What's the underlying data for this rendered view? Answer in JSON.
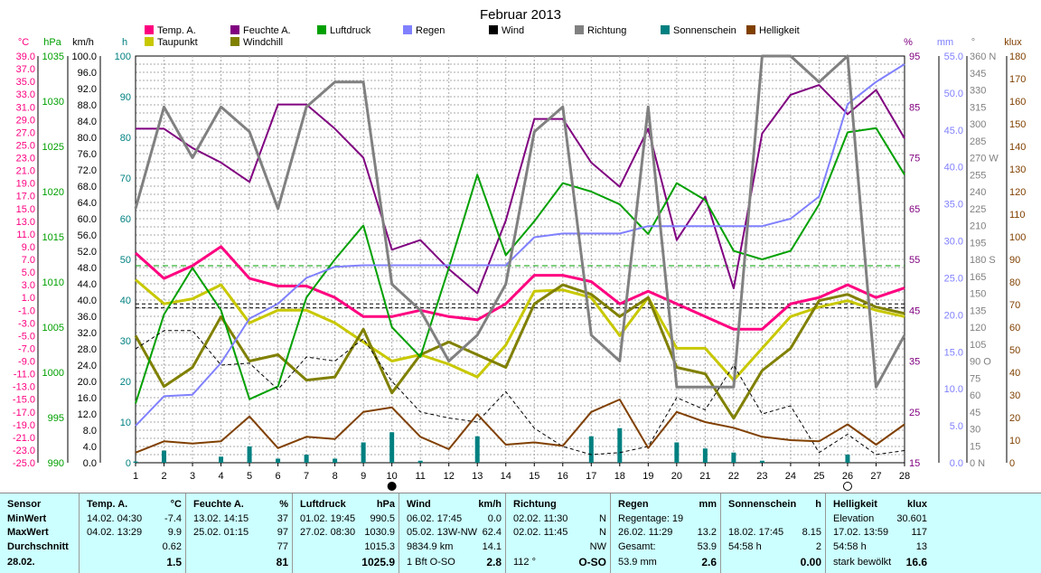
{
  "chart_data": {
    "type": "line",
    "title": "Februar 2013",
    "categories": [
      "1",
      "2",
      "3",
      "4",
      "5",
      "6",
      "7",
      "8",
      "9",
      "10",
      "11",
      "12",
      "13",
      "14",
      "15",
      "16",
      "17",
      "18",
      "19",
      "20",
      "21",
      "22",
      "23",
      "24",
      "25",
      "26",
      "27",
      "28"
    ],
    "legend": [
      {
        "name": "Temp. A.",
        "color": "#ff0080"
      },
      {
        "name": "Feuchte A.",
        "color": "#800080"
      },
      {
        "name": "Luftdruck",
        "color": "#00a000"
      },
      {
        "name": "Regen",
        "color": "#8080ff"
      },
      {
        "name": "Wind",
        "color": "#000000"
      },
      {
        "name": "Richtung",
        "color": "#808080"
      },
      {
        "name": "Sonnenschein",
        "color": "#008080"
      },
      {
        "name": "Helligkeit",
        "color": "#804000"
      },
      {
        "name": "Taupunkt",
        "color": "#c8c800"
      },
      {
        "name": "Windchill",
        "color": "#808000"
      }
    ],
    "axes": {
      "temp": {
        "label": "°C",
        "color": "#ff0080",
        "min": -25,
        "max": 39,
        "ticks": [
          "39.0",
          "37.0",
          "35.0",
          "33.0",
          "31.0",
          "29.0",
          "27.0",
          "25.0",
          "23.0",
          "21.0",
          "19.0",
          "17.0",
          "15.0",
          "13.0",
          "11.0",
          "9.0",
          "7.0",
          "5.0",
          "3.0",
          "1.0",
          "-1.0",
          "-3.0",
          "-5.0",
          "-7.0",
          "-9.0",
          "-11.0",
          "-13.0",
          "-15.0",
          "-17.0",
          "-19.0",
          "-21.0",
          "-23.0",
          "-25.0"
        ]
      },
      "hpa": {
        "label": "hPa",
        "color": "#00a000",
        "min": 990,
        "max": 1038,
        "ticks": [
          "1035",
          "1030",
          "1025",
          "1020",
          "1015",
          "1010",
          "1005",
          "1000",
          "995",
          "990"
        ]
      },
      "kmh": {
        "label": "km/h",
        "color": "#000000",
        "min": 0,
        "max": 100,
        "ticks": [
          "100.0",
          "96.0",
          "92.0",
          "88.0",
          "84.0",
          "80.0",
          "76.0",
          "72.0",
          "68.0",
          "64.0",
          "60.0",
          "56.0",
          "52.0",
          "48.0",
          "44.0",
          "40.0",
          "36.0",
          "32.0",
          "28.0",
          "24.0",
          "20.0",
          "16.0",
          "12.0",
          "8.0",
          "4.0",
          "0.0"
        ]
      },
      "h": {
        "label": "h",
        "color": "#008080",
        "min": 0,
        "max": 100,
        "ticks": [
          "100",
          "90",
          "80",
          "70",
          "60",
          "50",
          "40",
          "30",
          "20",
          "10",
          "0"
        ]
      },
      "pct": {
        "label": "%",
        "color": "#800080",
        "min": 15,
        "max": 99,
        "ticks": [
          "95",
          "85",
          "75",
          "65",
          "55",
          "45",
          "35",
          "25",
          "15"
        ]
      },
      "mm": {
        "label": "mm",
        "color": "#8080ff",
        "min": 0,
        "max": 55,
        "ticks": [
          "55.0",
          "50.0",
          "45.0",
          "40.0",
          "35.0",
          "30.0",
          "25.0",
          "20.0",
          "15.0",
          "10.0",
          "5.0",
          "0.0"
        ]
      },
      "deg": {
        "label": "°",
        "color": "#808080",
        "min": 0,
        "max": 360,
        "ticks": [
          "360 N",
          "345",
          "330",
          "315",
          "300",
          "285",
          "270 W",
          "255",
          "240",
          "225",
          "210",
          "195",
          "180 S",
          "165",
          "150",
          "135",
          "120",
          "105",
          "90 O",
          "75",
          "60",
          "45",
          "30",
          "15",
          "0 N"
        ]
      },
      "klux": {
        "label": "klux",
        "color": "#804000",
        "min": 0,
        "max": 180,
        "ticks": [
          "180",
          "170",
          "160",
          "150",
          "140",
          "130",
          "120",
          "110",
          "100",
          "90",
          "80",
          "70",
          "60",
          "50",
          "40",
          "30",
          "20",
          "10",
          "0"
        ]
      }
    },
    "series": [
      {
        "name": "Temp. A.",
        "axis": "temp",
        "color": "#ff0080",
        "width": 3,
        "values": [
          8.0,
          4.0,
          6.0,
          9.0,
          4.0,
          2.8,
          2.8,
          1.0,
          -2.0,
          -2.0,
          -1.0,
          -2.0,
          -2.5,
          0.0,
          4.5,
          4.5,
          3.5,
          0.0,
          2.0,
          0.0,
          -2.0,
          -4.0,
          -4.0,
          0.0,
          1.0,
          3.0,
          1.0,
          2.5
        ]
      },
      {
        "name": "Taupunkt",
        "axis": "temp",
        "color": "#c8c800",
        "width": 3,
        "values": [
          3.8,
          0.0,
          0.8,
          3.0,
          -3.0,
          -1.0,
          -1.0,
          -3.0,
          -6.0,
          -9.0,
          -8.0,
          -9.5,
          -11.5,
          -6.5,
          2.0,
          2.2,
          1.0,
          -5.0,
          1.0,
          -7.0,
          -7.0,
          -12.0,
          -7.0,
          -2.0,
          -0.5,
          0.5,
          -1.0,
          -2.0
        ]
      },
      {
        "name": "Windchill",
        "axis": "temp",
        "color": "#808000",
        "width": 3,
        "values": [
          -5.0,
          -13.0,
          -10.0,
          -2.0,
          -9.0,
          -8.0,
          -12.0,
          -11.5,
          -4.0,
          -14.0,
          -8.0,
          -6.0,
          -8.0,
          -10.0,
          0.0,
          3.0,
          1.5,
          -2.0,
          1.0,
          -10.0,
          -11.0,
          -18.0,
          -10.5,
          -7.0,
          0.5,
          1.5,
          -0.5,
          -1.5
        ]
      },
      {
        "name": "Feuchte A.",
        "axis": "pct",
        "color": "#800080",
        "width": 2,
        "values": [
          84,
          84,
          80,
          77,
          73,
          89,
          89,
          84,
          78,
          59,
          61,
          55,
          50,
          65,
          86,
          86,
          77,
          72,
          84,
          61,
          70,
          51,
          83,
          91,
          93,
          87,
          92,
          82
        ]
      },
      {
        "name": "Luftdruck",
        "axis": "hpa",
        "color": "#00a000",
        "width": 2,
        "values": [
          997.0,
          1007.5,
          1013.0,
          1008.0,
          997.5,
          999.0,
          1009.5,
          1014.0,
          1018.0,
          1006.0,
          1002.5,
          1013.0,
          1024.0,
          1014.5,
          1018.5,
          1023.0,
          1022.0,
          1020.5,
          1017.0,
          1023.0,
          1021.0,
          1015.0,
          1014.0,
          1015.0,
          1020.5,
          1029.0,
          1029.5,
          1024.0
        ]
      },
      {
        "name": "Regen",
        "axis": "mm",
        "color": "#8080ff",
        "width": 2,
        "values": [
          5.0,
          9.0,
          9.2,
          13.5,
          19.5,
          21.5,
          25.0,
          26.5,
          26.7,
          26.7,
          26.7,
          26.7,
          26.7,
          26.7,
          30.5,
          31.0,
          31.0,
          31.0,
          32.0,
          32.0,
          32.0,
          32.0,
          32.0,
          33.0,
          36.0,
          48.5,
          51.5,
          53.9
        ]
      },
      {
        "name": "Richtung",
        "axis": "deg",
        "color": "#808080",
        "width": 3,
        "values": [
          225,
          315,
          270,
          315,
          293,
          225,
          315,
          337,
          337,
          158,
          135,
          90,
          113,
          158,
          293,
          315,
          113,
          90,
          315,
          67,
          67,
          67,
          360,
          360,
          337,
          360,
          67,
          113
        ]
      },
      {
        "name": "Wind",
        "axis": "kmh",
        "color": "#000000",
        "width": 1,
        "dash": "4,3",
        "values": [
          28,
          32.5,
          32.5,
          24,
          24.5,
          18,
          26,
          25,
          30.5,
          20,
          12.5,
          11,
          10,
          17.5,
          8.5,
          4,
          2,
          2.5,
          4,
          16,
          13,
          24,
          12,
          14,
          2.5,
          7,
          2,
          3
        ]
      },
      {
        "name": "Helligkeit",
        "axis": "klux",
        "color": "#804000",
        "width": 2,
        "values": [
          4.5,
          9.5,
          8.5,
          9.5,
          20.5,
          6.5,
          11.5,
          10.5,
          22.5,
          24.5,
          11.5,
          6.0,
          21.5,
          8.0,
          9.0,
          7.5,
          22.5,
          28.0,
          6.5,
          22.5,
          18.0,
          15.5,
          11.5,
          10.0,
          9.5,
          17.0,
          8.0,
          17.0
        ]
      }
    ],
    "bars": {
      "name": "Sonnenschein",
      "axis": "h",
      "color": "#008080",
      "values": [
        0.3,
        3.0,
        0,
        1.5,
        4.0,
        1.0,
        2.0,
        1.0,
        5.0,
        7.5,
        0.5,
        0,
        6.5,
        0,
        0,
        0,
        6.5,
        8.5,
        0,
        5.0,
        3.5,
        2.5,
        0.5,
        0,
        0,
        2.0,
        0,
        0
      ]
    },
    "reference_lines": [
      {
        "axis": "temp",
        "value": 0,
        "color": "#000000",
        "dash": "4,3"
      },
      {
        "axis": "temp",
        "value": -0.62,
        "color": "#000000",
        "dash": "4,3"
      },
      {
        "axis": "pct",
        "value": 55.7,
        "color": "#00a000",
        "dash": "6,4"
      }
    ],
    "moon_markers": [
      {
        "day": "10",
        "phase": "new"
      },
      {
        "day": "26",
        "phase": "full"
      }
    ]
  },
  "stats": {
    "sensor": {
      "header": "Sensor",
      "rows": [
        "MinWert",
        "MaxWert",
        "Durchschnitt"
      ],
      "footer": "28.02."
    },
    "temp": {
      "header": "Temp. A.",
      "unit": "°C",
      "min_time": "14.02.  04:30",
      "min": "-7.4",
      "max_time": "04.02.  13:29",
      "max": "9.9",
      "avg": "0.62",
      "current": "1.5"
    },
    "humidity": {
      "header": "Feuchte A.",
      "unit": "%",
      "min_time": "13.02.  14:15",
      "min": "37",
      "max_time": "25.02.  01:15",
      "max": "97",
      "avg": "77",
      "current": "81"
    },
    "pressure": {
      "header": "Luftdruck",
      "unit": "hPa",
      "min_time": "01.02.  19:45",
      "min": "990.5",
      "max_time": "27.02.  08:30",
      "max": "1030.9",
      "avg": "1015.3",
      "current": "1025.9"
    },
    "wind": {
      "header": "Wind",
      "unit": "km/h",
      "min_time": "06.02.  17:45",
      "min": "0.0",
      "max_time": "05.02.  13W-NW",
      "max": "62.4",
      "avg_label": "9834.9 km",
      "avg": "14.1",
      "current_label": "1 Bft  O-SO",
      "current": "2.8"
    },
    "direction": {
      "header": "Richtung",
      "min_time": "02.02.  11:30",
      "min": "N",
      "max_time": "02.02.  11:45",
      "max": "N",
      "avg": "NW",
      "current_label": "112 °",
      "current": "O-SO"
    },
    "rain": {
      "header": "Regen",
      "unit": "mm",
      "min_time": "Regentage: 19",
      "max_time": "26.02.  11:29",
      "max": "13.2",
      "avg_label": "Gesamt:",
      "avg": "53.9",
      "current_label": "53.9 mm",
      "current": "2.6"
    },
    "sunshine": {
      "header": "Sonnenschein",
      "unit": "h",
      "max_time": "18.02.  17:45",
      "max": "8.15",
      "avg_label": "54:58 h",
      "avg": "2",
      "current": "0.00"
    },
    "brightness": {
      "header": "Helligkeit",
      "unit": "klux",
      "min_time": "Elevation",
      "min": "30.601",
      "max_time": "17.02.  13:59",
      "max": "117",
      "avg_label": "54:58 h",
      "avg": "13",
      "current_label": "stark bewölkt",
      "current": "16.6"
    }
  }
}
